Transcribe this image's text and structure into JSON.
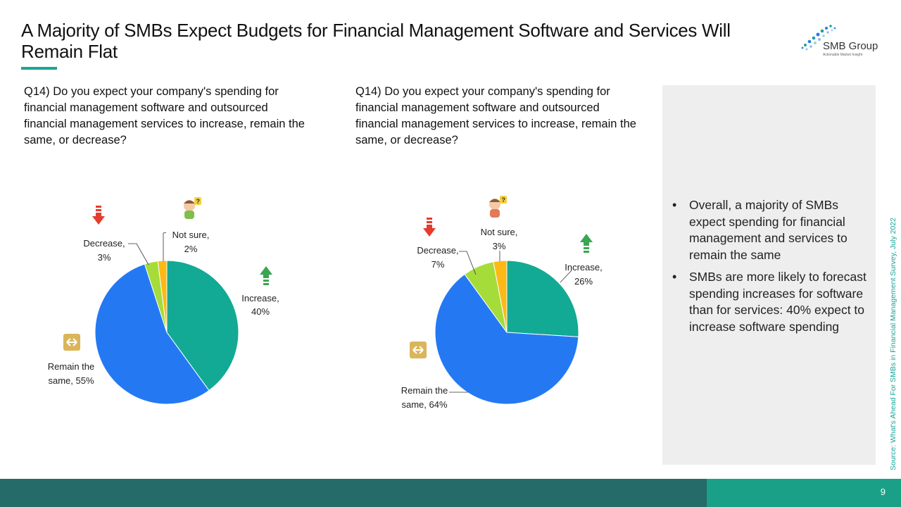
{
  "title": "A Majority of SMBs Expect Budgets for Financial  Management Software and Services Will Remain Flat",
  "logo": {
    "name": "SMB Group",
    "tagline": "Actionable Market Insight"
  },
  "panel": {
    "bullets": [
      "Overall, a majority of SMBs expect spending for financial management and services to remain the same",
      "SMBs are more likely to forecast spending increases for software than for services: 40% expect to increase software spending"
    ]
  },
  "source": "Source: What's Ahead For SMBs in Financial Management Survey, July 2022",
  "page_number": "9",
  "colors": {
    "increase": "#12aa94",
    "remain": "#2479f3",
    "decrease": "#a6dc3a",
    "not_sure": "#fdb915",
    "footer_dark": "#256b6a",
    "footer_teal": "#1aa086"
  },
  "chart_data": [
    {
      "type": "pie",
      "title": "Q14) Do you expect your company's spending for financial management software and outsourced financial management services to increase, remain the same, or decrease?",
      "slices": [
        {
          "label": "Increase,",
          "value": 40,
          "display": "40%"
        },
        {
          "label": "Remain the same,",
          "value": 55,
          "display": "55%"
        },
        {
          "label": "Decrease,",
          "value": 3,
          "display": "3%"
        },
        {
          "label": "Not sure,",
          "value": 2,
          "display": "2%"
        }
      ]
    },
    {
      "type": "pie",
      "title": "Q14) Do you expect your company's spending for financial management software and outsourced financial management services to increase, remain the same, or decrease?",
      "slices": [
        {
          "label": "Increase,",
          "value": 26,
          "display": "26%"
        },
        {
          "label": "Remain the same,",
          "value": 64,
          "display": "64%"
        },
        {
          "label": "Decrease,",
          "value": 7,
          "display": "7%"
        },
        {
          "label": "Not sure,",
          "value": 3,
          "display": "3%"
        }
      ]
    }
  ],
  "icons": {
    "increase": "green-up-arrow-icon",
    "decrease": "red-down-arrow-icon",
    "remain": "left-right-arrow-icon",
    "not_sure": "thinking-person-icon"
  }
}
